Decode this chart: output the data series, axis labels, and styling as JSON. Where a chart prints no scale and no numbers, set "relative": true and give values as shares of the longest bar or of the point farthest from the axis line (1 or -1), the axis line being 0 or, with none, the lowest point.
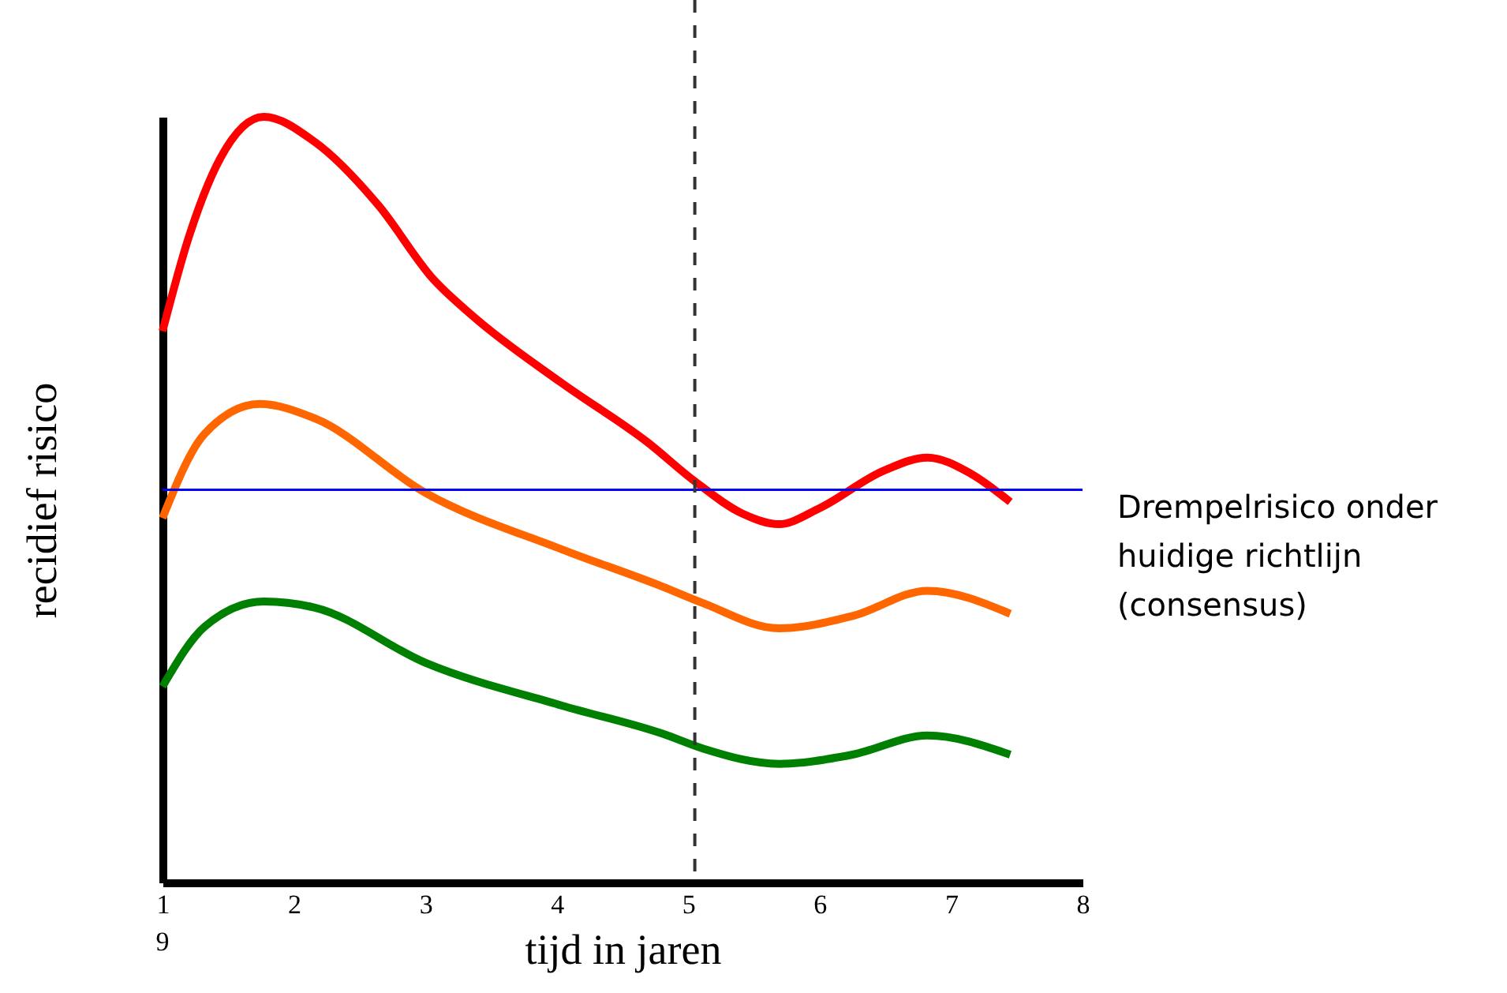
{
  "chart_data": {
    "type": "line",
    "xlabel": "tijd in jaren",
    "ylabel": "recidief risico",
    "relative": true,
    "xlim": [
      1,
      8
    ],
    "xticks": [
      1,
      2,
      3,
      4,
      5,
      6,
      7,
      8
    ],
    "line_style": "solid",
    "series": [
      {
        "color": "#ff0000",
        "x": [
          1.0,
          1.2,
          1.44,
          1.77,
          2.16,
          2.64,
          3.06,
          3.36,
          4.04,
          4.69,
          5.05,
          5.41,
          5.69,
          6.0,
          6.49,
          6.82,
          7.15,
          7.45
        ],
        "values": [
          0.72,
          0.843,
          0.946,
          1.0,
          0.967,
          0.885,
          0.788,
          0.74,
          0.652,
          0.575,
          0.524,
          0.482,
          0.468,
          0.489,
          0.538,
          0.555,
          0.534,
          0.497
        ]
      },
      {
        "color": "#ff6600",
        "x": [
          1.0,
          1.32,
          1.74,
          2.16,
          3.0,
          4.04,
          4.81,
          5.11,
          5.69,
          6.25,
          6.82,
          7.45
        ],
        "values": [
          0.476,
          0.586,
          0.625,
          0.606,
          0.509,
          0.435,
          0.386,
          0.365,
          0.332,
          0.348,
          0.381,
          0.351
        ]
      },
      {
        "color": "#008000",
        "x": [
          1.0,
          1.32,
          1.77,
          2.16,
          3.0,
          4.04,
          4.81,
          5.11,
          5.69,
          6.25,
          6.82,
          7.45
        ],
        "values": [
          0.256,
          0.334,
          0.367,
          0.359,
          0.287,
          0.231,
          0.194,
          0.175,
          0.155,
          0.167,
          0.192,
          0.167
        ]
      }
    ],
    "ref_lines": [
      {
        "axis": "y",
        "value": 0.513,
        "label": "Drempelrisico onder\nhuidige richtlijn\n(consensus)",
        "color": "#0000ff",
        "line_style": "solid"
      },
      {
        "axis": "x",
        "value": 5.05,
        "color": "#333333",
        "line_style": "dashed"
      }
    ],
    "annotations": [
      "9"
    ]
  }
}
